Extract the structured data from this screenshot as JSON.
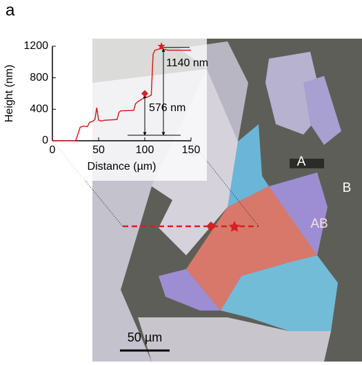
{
  "panel_label": "a",
  "image": {
    "labels": [
      "A",
      "B",
      "AB"
    ],
    "scale_bar": "50 µm"
  },
  "chart_data": {
    "type": "line",
    "xlabel": "Distance (µm)",
    "ylabel": "Height (nm)",
    "x": [
      0,
      25,
      27,
      30,
      33,
      38,
      40,
      44,
      46,
      48,
      50,
      53,
      56,
      70,
      72,
      74,
      88,
      90,
      93,
      97,
      100,
      104,
      107,
      109,
      111,
      114,
      118,
      125,
      150
    ],
    "values": [
      0,
      0,
      60,
      170,
      185,
      180,
      230,
      250,
      270,
      420,
      260,
      250,
      260,
      270,
      360,
      380,
      385,
      470,
      500,
      530,
      545,
      560,
      580,
      1100,
      1150,
      1160,
      1170,
      1150,
      1150
    ],
    "color": "#d42020",
    "marker_points": {
      "x": [
        100,
        118
      ],
      "values": [
        600,
        1200
      ]
    },
    "annotations": [
      "1140 nm",
      "576 nm"
    ],
    "xlim": [
      0,
      150
    ],
    "xticks": [
      0,
      50,
      100,
      150
    ],
    "ylim": [
      0,
      1200
    ],
    "yticks": [
      0,
      400,
      800,
      1200
    ]
  }
}
